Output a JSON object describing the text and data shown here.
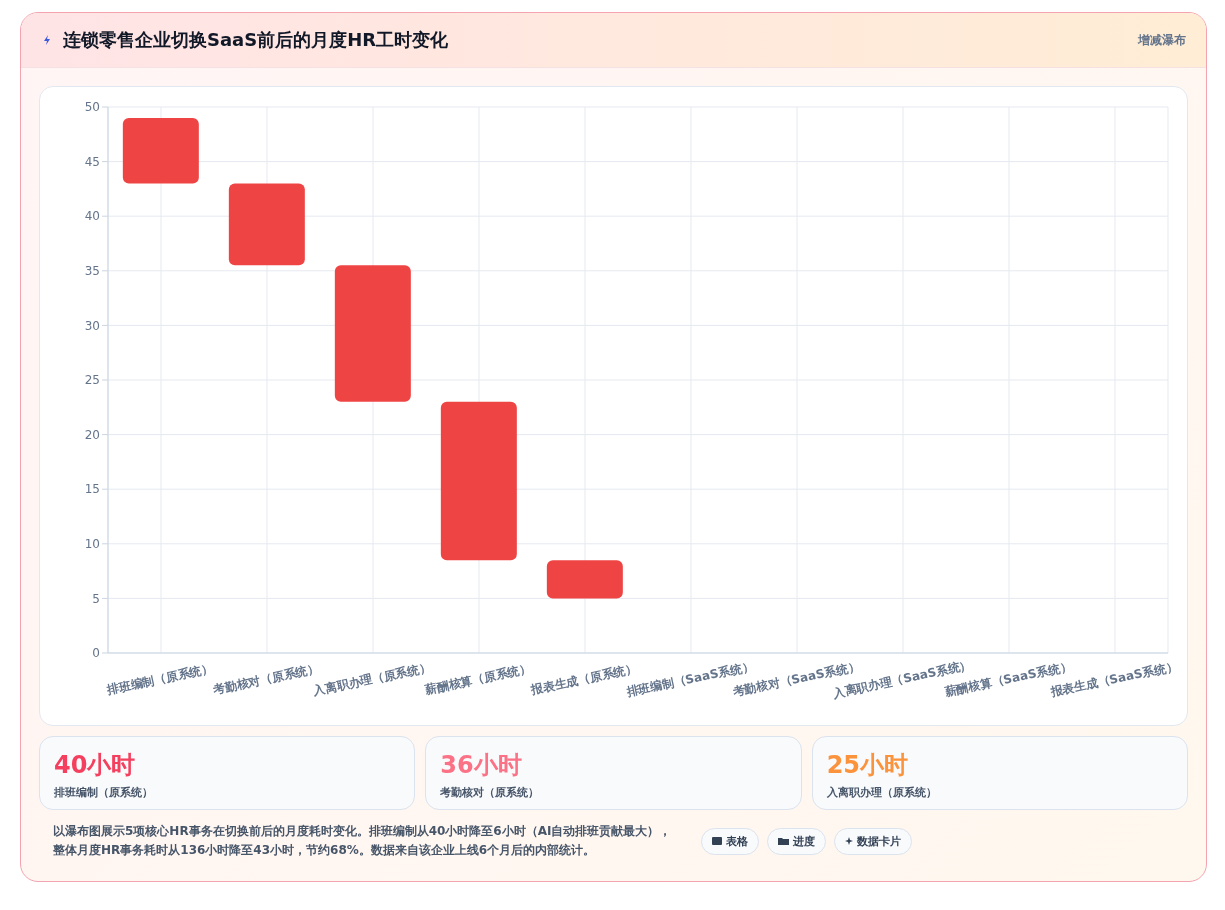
{
  "chart_data": {
    "type": "bar",
    "title": "连锁零售企业切换SaaS前后的月度HR工时变化",
    "categories": [
      "排班编制（原系统）",
      "考勤核对（原系统）",
      "入离职办理（原系统）",
      "薪酬核算（原系统）",
      "报表生成（原系统）",
      "排班编制（SaaS系统）",
      "考勤核对（SaaS系统）",
      "入离职办理（SaaS系统）",
      "薪酬核算（SaaS系统）",
      "报表生成（SaaS系统）"
    ],
    "values": [
      6,
      7.5,
      12.5,
      14.5,
      3.5,
      null,
      null,
      null,
      null,
      null
    ],
    "base": [
      43,
      35.5,
      23,
      8.5,
      5,
      null,
      null,
      null,
      null,
      null
    ],
    "color": "#ef4444",
    "ylim": [
      0,
      50
    ],
    "yticks": [
      0,
      5,
      10,
      15,
      20,
      25,
      30,
      35,
      40,
      45,
      50
    ],
    "grid": true,
    "annotations": [
      "增减瀑布",
      "40小时",
      "排班编制（原系统）",
      "36小时",
      "考勤核对（原系统）",
      "25小时",
      "入离职办理（原系统）",
      "以瀑布图展示5项核心HR事务在切换前后的月度耗时变化。排班编制从40小时降至6小时（AI自动排班贡献最大），整体月度HR事务耗时从136小时降至43小时，节约68%。数据来自该企业上线6个月后的内部统计。",
      "表格",
      "进度",
      "数据卡片"
    ]
  }
}
